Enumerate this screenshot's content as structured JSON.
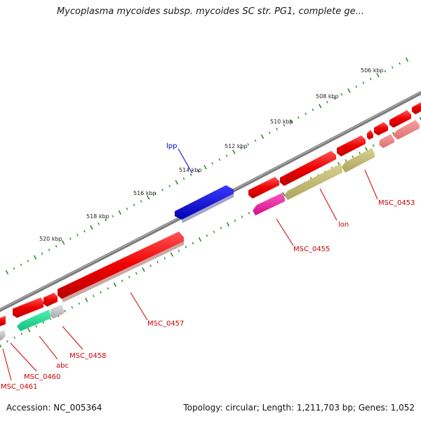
{
  "title": "Mycoplasma mycoides subsp. mycoides SC str. PG1, complete ge...",
  "footer": {
    "accession": "Accession: NC_005364",
    "summary": "Topology: circular; Length: 1,211,703 bp; Genes: 1,052"
  },
  "colors": {
    "backbone": "#808080",
    "tick": "#2e8b2e",
    "label_red": "#cc0000",
    "label_blue": "#0000cc"
  },
  "scale_labels": [
    "506 kbp",
    "508 kbp",
    "510 kbp",
    "512 kbp",
    "514 kbp",
    "516 kbp",
    "518 kbp",
    "520 kbp"
  ],
  "gene_labels": [
    {
      "id": "lpp",
      "text": "lpp",
      "color": "#0000cc"
    },
    {
      "id": "msc0453",
      "text": "MSC_0453",
      "color": "#cc0000"
    },
    {
      "id": "lon",
      "text": "lon",
      "color": "#cc0000"
    },
    {
      "id": "msc0455",
      "text": "MSC_0455",
      "color": "#cc0000"
    },
    {
      "id": "msc0457",
      "text": "MSC_0457",
      "color": "#cc0000"
    },
    {
      "id": "msc0458",
      "text": "MSC_0458",
      "color": "#cc0000"
    },
    {
      "id": "abc",
      "text": "abc",
      "color": "#cc0000"
    },
    {
      "id": "msc0460",
      "text": "MSC_0460",
      "color": "#cc0000"
    },
    {
      "id": "msc0461",
      "text": "MSC_0461",
      "color": "#cc0000"
    }
  ]
}
